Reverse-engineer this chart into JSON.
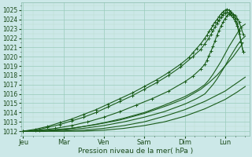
{
  "bg_color": "#cce8e8",
  "grid_major_color": "#99ccbb",
  "grid_minor_color": "#bbddcc",
  "line_color": "#1a5c1a",
  "xlabel": "Pression niveau de la mer( hPa )",
  "ylim": [
    1011.5,
    1025.8
  ],
  "xlim": [
    -0.05,
    5.6
  ],
  "yticks": [
    1012,
    1013,
    1014,
    1015,
    1016,
    1017,
    1018,
    1019,
    1020,
    1021,
    1022,
    1023,
    1024,
    1025
  ],
  "day_labels": [
    "Jeu",
    "Mar",
    "Ven",
    "Sam",
    "Dim",
    "Lun"
  ],
  "day_positions": [
    0,
    1,
    2,
    3,
    4,
    5
  ],
  "curves": [
    {
      "x": [
        0.0,
        0.3,
        0.6,
        0.9,
        1.2,
        1.5,
        1.8,
        2.1,
        2.4,
        2.7,
        3.0,
        3.3,
        3.6,
        3.9,
        4.1,
        4.2,
        4.3,
        4.4,
        4.5,
        4.55,
        4.6,
        4.65,
        4.7,
        4.75,
        4.8,
        4.85,
        4.9,
        4.95,
        5.0,
        5.05,
        5.1,
        5.15,
        5.2,
        5.25,
        5.3,
        5.35,
        5.4,
        5.45
      ],
      "y": [
        1012,
        1012.2,
        1012.5,
        1012.9,
        1013.3,
        1013.8,
        1014.3,
        1014.9,
        1015.5,
        1016.1,
        1016.8,
        1017.5,
        1018.3,
        1019.2,
        1019.9,
        1020.4,
        1020.9,
        1021.4,
        1022.0,
        1022.3,
        1022.7,
        1023.0,
        1023.4,
        1023.7,
        1024.0,
        1024.3,
        1024.6,
        1024.8,
        1025.0,
        1025.1,
        1025.0,
        1024.8,
        1024.5,
        1024.1,
        1023.6,
        1022.8,
        1021.5,
        1020.5
      ],
      "markers": true
    },
    {
      "x": [
        0.0,
        0.3,
        0.6,
        0.9,
        1.2,
        1.5,
        1.8,
        2.1,
        2.4,
        2.7,
        3.0,
        3.3,
        3.6,
        3.9,
        4.2,
        4.4,
        4.5,
        4.6,
        4.65,
        4.7,
        4.75,
        4.8,
        4.85,
        4.9,
        4.95,
        5.0,
        5.05,
        5.1,
        5.15,
        5.2,
        5.25,
        5.3,
        5.35,
        5.4,
        5.45
      ],
      "y": [
        1012,
        1012.1,
        1012.4,
        1012.7,
        1013.1,
        1013.5,
        1014.0,
        1014.6,
        1015.2,
        1015.8,
        1016.5,
        1017.2,
        1018.0,
        1018.9,
        1020.0,
        1020.8,
        1021.4,
        1022.0,
        1022.4,
        1022.8,
        1023.2,
        1023.6,
        1023.9,
        1024.2,
        1024.5,
        1024.7,
        1024.8,
        1024.7,
        1024.5,
        1024.2,
        1023.8,
        1023.3,
        1022.5,
        1021.5,
        1020.5
      ],
      "markers": true
    },
    {
      "x": [
        0.0,
        0.4,
        0.8,
        1.2,
        1.6,
        2.0,
        2.4,
        2.8,
        3.2,
        3.6,
        4.0,
        4.2,
        4.4,
        4.5,
        4.55,
        4.6,
        4.65,
        4.7,
        4.75,
        4.8,
        4.85,
        4.9,
        4.95,
        5.0,
        5.05,
        5.1,
        5.15,
        5.2,
        5.25,
        5.3,
        5.35,
        5.4,
        5.45
      ],
      "y": [
        1012,
        1012.1,
        1012.3,
        1012.6,
        1013.0,
        1013.5,
        1014.1,
        1014.8,
        1015.5,
        1016.3,
        1017.3,
        1017.9,
        1018.7,
        1019.2,
        1019.6,
        1020.1,
        1020.6,
        1021.1,
        1021.7,
        1022.3,
        1022.8,
        1023.3,
        1023.7,
        1024.1,
        1024.4,
        1024.6,
        1024.7,
        1024.6,
        1024.4,
        1024.1,
        1023.7,
        1023.1,
        1022.4
      ],
      "markers": true
    },
    {
      "x": [
        0.0,
        0.5,
        1.0,
        1.5,
        2.0,
        2.5,
        3.0,
        3.5,
        4.0,
        4.3,
        4.5,
        4.6,
        4.7,
        4.8,
        4.9,
        5.0,
        5.1,
        5.2,
        5.3,
        5.4,
        5.5
      ],
      "y": [
        1012,
        1012.0,
        1012.2,
        1012.5,
        1012.9,
        1013.4,
        1014.0,
        1014.8,
        1015.7,
        1016.4,
        1017.0,
        1017.5,
        1018.1,
        1018.8,
        1019.5,
        1020.3,
        1021.1,
        1021.8,
        1022.5,
        1023.2,
        1023.5
      ],
      "markers": false
    },
    {
      "x": [
        0.0,
        0.5,
        1.0,
        1.5,
        2.0,
        2.5,
        3.0,
        3.5,
        4.0,
        4.3,
        4.5,
        4.6,
        4.7,
        4.8,
        4.9,
        5.0,
        5.1,
        5.2,
        5.3,
        5.4,
        5.5
      ],
      "y": [
        1012,
        1012.0,
        1012.1,
        1012.3,
        1012.6,
        1013.0,
        1013.5,
        1014.1,
        1014.9,
        1015.5,
        1016.0,
        1016.5,
        1017.0,
        1017.6,
        1018.3,
        1019.0,
        1019.8,
        1020.5,
        1021.2,
        1021.8,
        1022.2
      ],
      "markers": false
    },
    {
      "x": [
        0.0,
        0.5,
        1.0,
        1.5,
        2.0,
        2.5,
        3.0,
        3.5,
        4.0,
        4.5,
        5.0,
        5.3,
        5.5
      ],
      "y": [
        1012,
        1012.0,
        1012.0,
        1012.1,
        1012.3,
        1012.6,
        1013.0,
        1013.6,
        1014.3,
        1015.2,
        1016.3,
        1017.2,
        1017.8
      ],
      "markers": false
    },
    {
      "x": [
        0.0,
        0.5,
        1.0,
        1.5,
        2.0,
        2.5,
        3.0,
        3.5,
        4.0,
        4.5,
        5.0,
        5.3,
        5.5
      ],
      "y": [
        1012,
        1012.0,
        1012.0,
        1012.0,
        1012.1,
        1012.3,
        1012.6,
        1013.0,
        1013.6,
        1014.4,
        1015.4,
        1016.2,
        1016.8
      ],
      "markers": false
    },
    {
      "x": [
        0.0,
        0.6,
        1.2,
        1.8,
        2.4,
        3.0,
        3.6,
        4.0,
        4.4,
        4.6,
        4.8,
        5.0,
        5.2,
        5.3,
        5.4,
        5.45
      ],
      "y": [
        1012,
        1012.1,
        1012.3,
        1012.7,
        1013.2,
        1013.9,
        1014.8,
        1015.5,
        1016.5,
        1017.2,
        1018.0,
        1019.0,
        1020.0,
        1020.6,
        1021.2,
        1021.5
      ],
      "markers": false
    }
  ]
}
